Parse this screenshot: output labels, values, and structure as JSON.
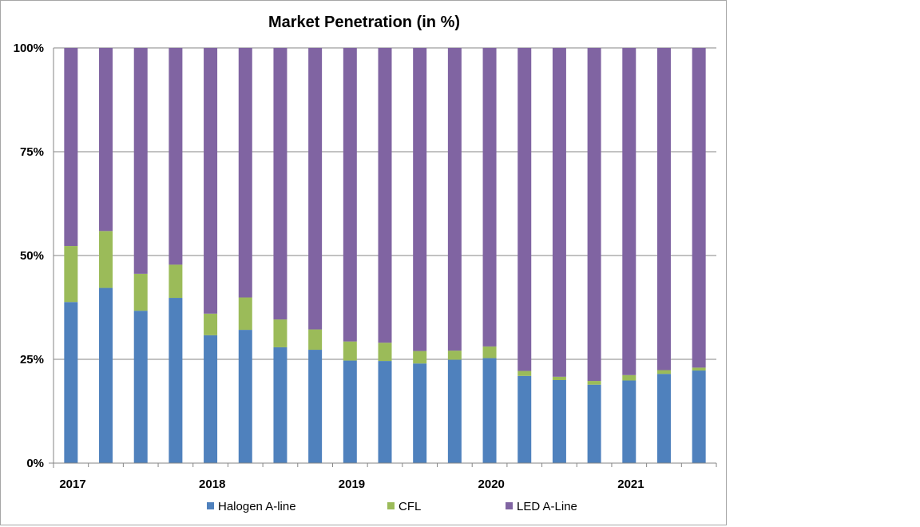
{
  "chart_data": {
    "type": "bar",
    "stacked": true,
    "title": "Market Penetration (in %)",
    "xlabel": "",
    "ylabel": "",
    "ylim": [
      0,
      100
    ],
    "y_ticks": [
      0,
      25,
      50,
      75,
      100
    ],
    "y_tick_labels": [
      "0%",
      "25%",
      "50%",
      "75%",
      "100%"
    ],
    "x_tick_labels": [
      {
        "label": "2017",
        "index": 0
      },
      {
        "label": "2018",
        "index": 4
      },
      {
        "label": "2019",
        "index": 8
      },
      {
        "label": "2020",
        "index": 12
      },
      {
        "label": "2021",
        "index": 16
      }
    ],
    "grid": true,
    "legend_position": "bottom",
    "series": [
      {
        "name": "Halogen A-line",
        "color": "#4f81bd",
        "values": [
          38.8,
          42.2,
          36.7,
          39.8,
          30.8,
          32.1,
          27.9,
          27.3,
          24.7,
          24.6,
          24.0,
          24.9,
          25.3,
          21.0,
          20.0,
          18.9,
          19.9,
          21.5,
          22.3
        ]
      },
      {
        "name": "CFL",
        "color": "#9bbb59",
        "values": [
          13.5,
          13.7,
          8.9,
          8.0,
          5.2,
          7.8,
          6.7,
          4.9,
          4.6,
          4.4,
          3.0,
          2.2,
          2.8,
          1.2,
          0.8,
          0.9,
          1.3,
          0.9,
          0.7
        ]
      },
      {
        "name": "LED A-Line",
        "color": "#8064a2",
        "values": [
          47.7,
          44.1,
          54.4,
          52.2,
          64.0,
          60.1,
          65.4,
          67.8,
          70.7,
          71.0,
          73.0,
          72.9,
          71.9,
          77.8,
          79.2,
          80.2,
          78.8,
          77.6,
          77.0
        ]
      }
    ]
  }
}
